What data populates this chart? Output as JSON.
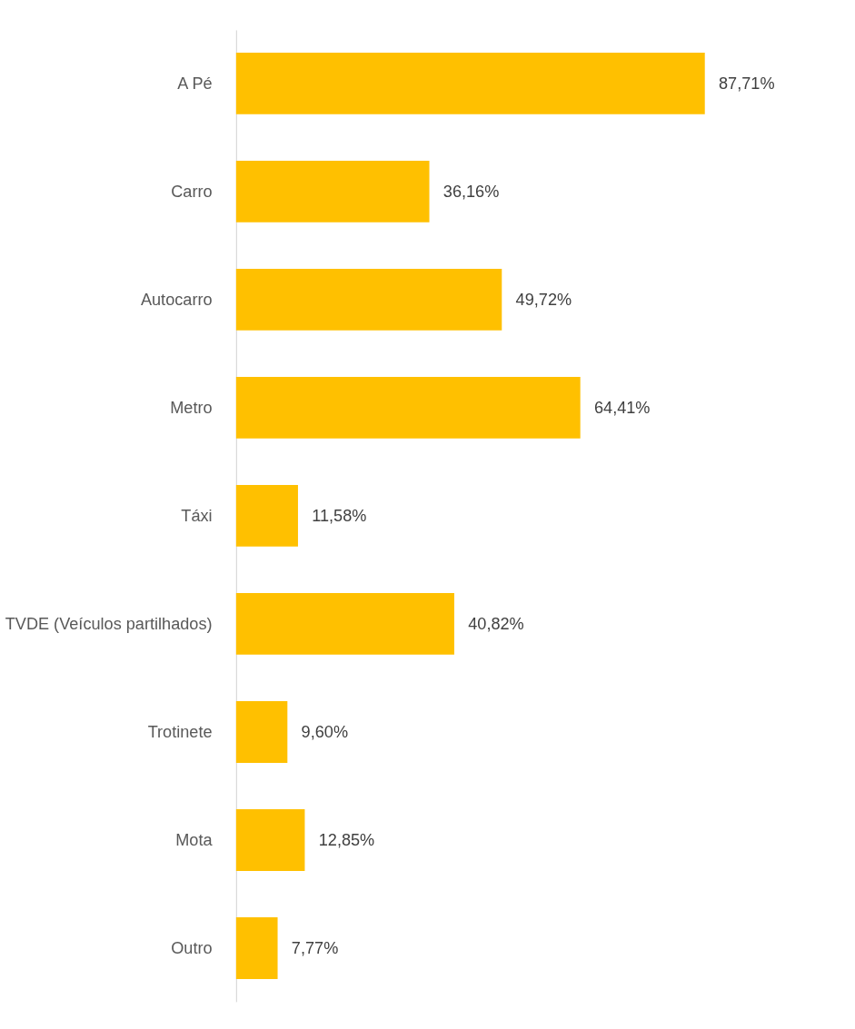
{
  "chart_data": {
    "type": "bar",
    "orientation": "horizontal",
    "categories": [
      "A Pé",
      "Carro",
      "Autocarro",
      "Metro",
      "Táxi",
      "TVDE (Veículos partilhados)",
      "Trotinete",
      "Mota",
      "Outro"
    ],
    "values": [
      87.71,
      36.16,
      49.72,
      64.41,
      11.58,
      40.82,
      9.6,
      12.85,
      7.77
    ],
    "value_labels": [
      "87,71%",
      "36,16%",
      "49,72%",
      "64,41%",
      "11,58%",
      "40,82%",
      "9,60%",
      "12,85%",
      "7,77%"
    ],
    "color": "#ffc000"
  }
}
